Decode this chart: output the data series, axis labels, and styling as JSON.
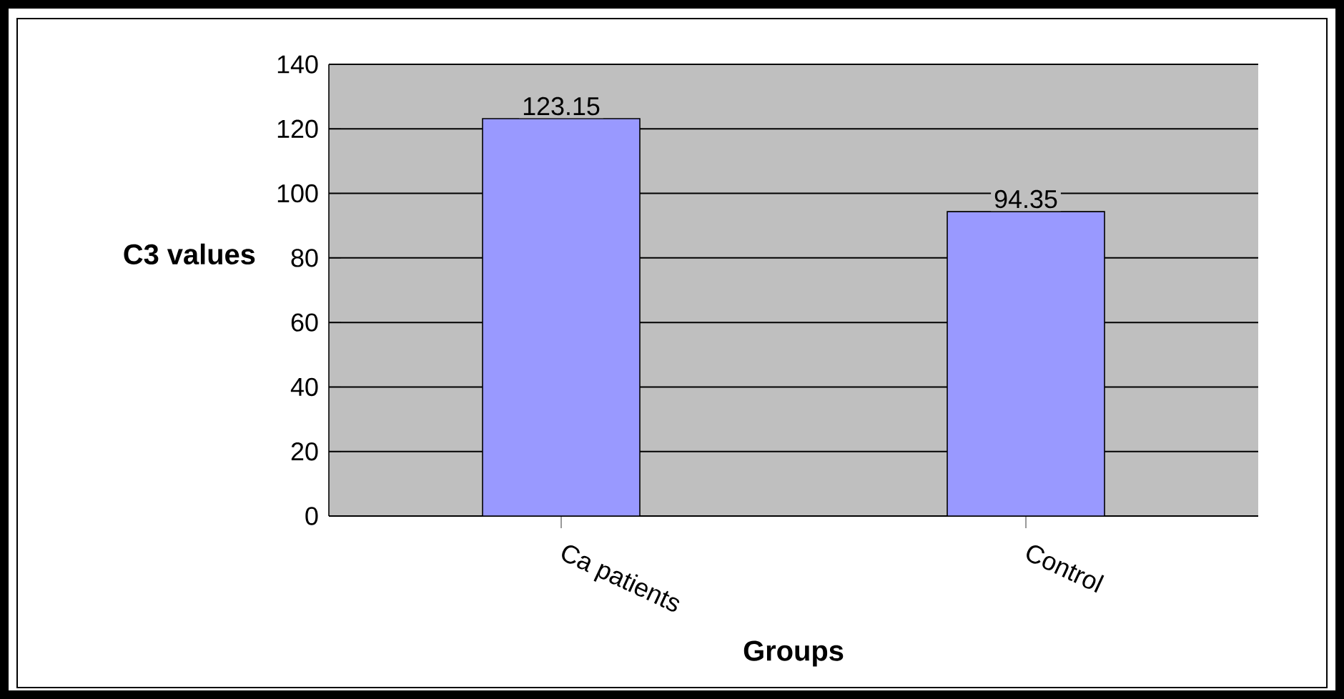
{
  "chart_data": {
    "type": "bar",
    "xlabel": "Groups",
    "ylabel": "C3 values",
    "categories": [
      "Ca patients",
      "Control"
    ],
    "values": [
      123.15,
      94.35
    ],
    "color": "#9999ff",
    "data_labels": true,
    "ylim": [
      0,
      140
    ],
    "yticks": [
      0,
      20,
      40,
      60,
      80,
      100,
      120,
      140
    ],
    "grid": "y"
  }
}
